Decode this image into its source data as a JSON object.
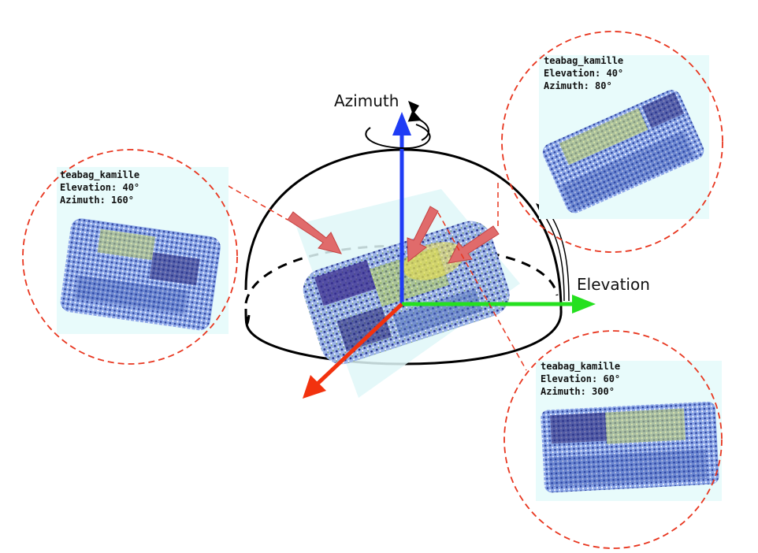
{
  "axes": {
    "azimuth_label": "Azimuth",
    "elevation_label": "Elevation",
    "colors": {
      "z": "#1f3cf5",
      "x": "#25e01f",
      "y": "#f2320e"
    }
  },
  "views": [
    {
      "object": "teabag_kamille",
      "elevation": "Elevation: 40°",
      "azimuth": "Azimuth: 160°"
    },
    {
      "object": "teabag_kamille",
      "elevation": "Elevation: 40°",
      "azimuth": "Azimuth: 80°"
    },
    {
      "object": "teabag_kamille",
      "elevation": "Elevation: 60°",
      "azimuth": "Azimuth: 300°"
    }
  ],
  "style": {
    "dash_circle_color": "#e8361f",
    "camera_arrow_color": "#e05a5a",
    "panel_bg": "#e8fbfb"
  }
}
